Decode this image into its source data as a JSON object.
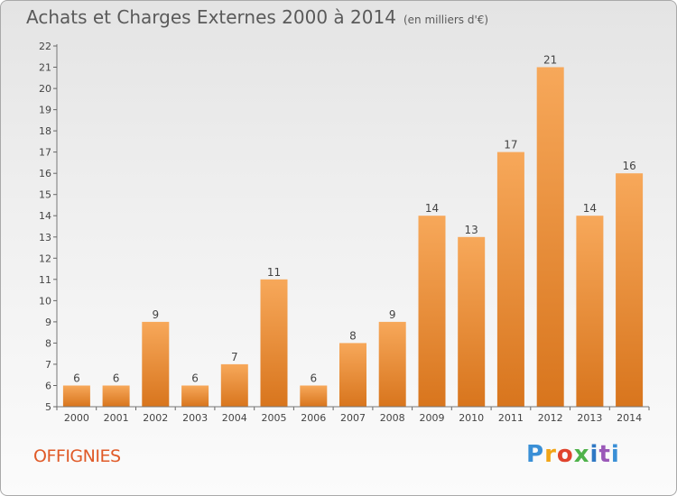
{
  "header": {
    "title": "Achats et Charges Externes 2000 à 2014",
    "unit": "(en milliers d'€)"
  },
  "footer": {
    "city": "OFFIGNIES",
    "logo": "Proxiti",
    "logo_letters": [
      "P",
      "r",
      "o",
      "x",
      "i",
      "t",
      "i"
    ]
  },
  "colors": {
    "bar_light": "#f7a85a",
    "bar_dark": "#d8751d",
    "title_text": "#5a5a5a",
    "city_text": "#e05a28"
  },
  "chart_data": {
    "type": "bar",
    "title": "Achats et Charges Externes 2000 à 2014",
    "subtitle": "(en milliers d'€)",
    "categories": [
      "2000",
      "2001",
      "2002",
      "2003",
      "2004",
      "2005",
      "2006",
      "2007",
      "2008",
      "2009",
      "2010",
      "2011",
      "2012",
      "2013",
      "2014"
    ],
    "values": [
      6,
      6,
      9,
      6,
      7,
      11,
      6,
      8,
      9,
      14,
      13,
      17,
      21,
      14,
      16
    ],
    "data_labels": [
      "6",
      "6",
      "9",
      "6",
      "7",
      "11",
      "6",
      "8",
      "9",
      "14",
      "13",
      "17",
      "21",
      "14",
      "16"
    ],
    "ylim": [
      5,
      22
    ],
    "yticks": [
      5,
      6,
      7,
      8,
      9,
      10,
      11,
      12,
      13,
      14,
      15,
      16,
      17,
      18,
      19,
      20,
      21,
      22
    ],
    "xlabel": "",
    "ylabel": "",
    "grid": false
  }
}
